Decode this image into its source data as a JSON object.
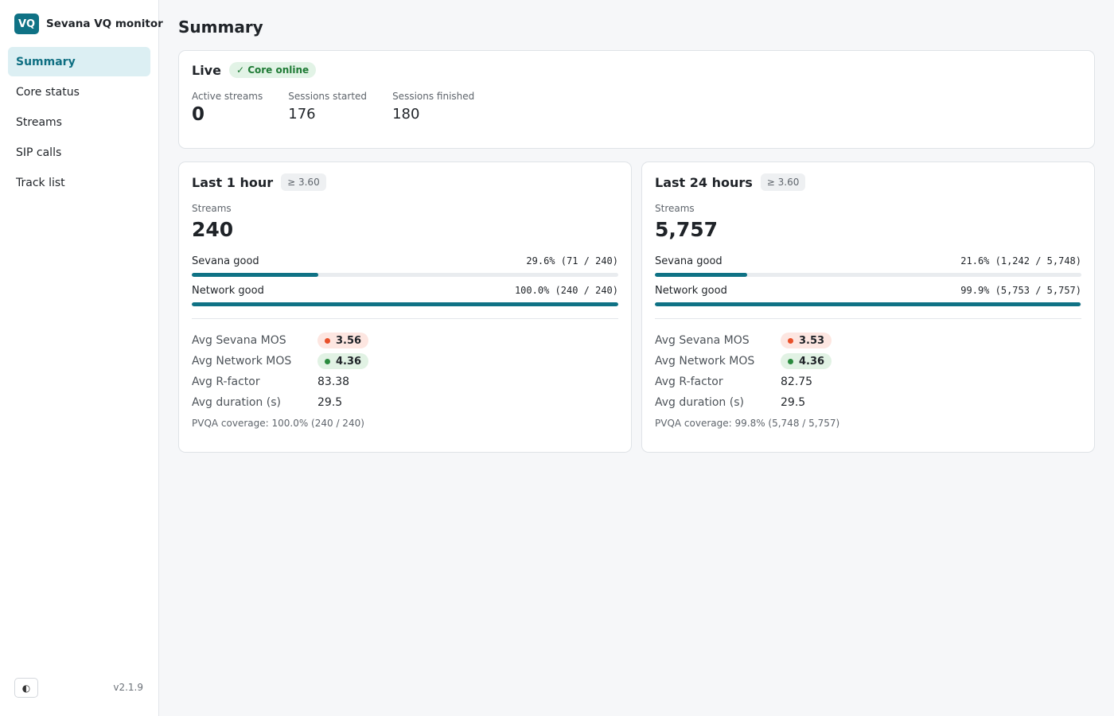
{
  "app": {
    "logo": "VQ",
    "name": "Sevana VQ monitor",
    "version": "v2.1.9",
    "theme_toggle_icon": "half-circle-icon"
  },
  "sidebar": {
    "items": [
      {
        "label": "Summary",
        "active": true
      },
      {
        "label": "Core status",
        "active": false
      },
      {
        "label": "Streams",
        "active": false
      },
      {
        "label": "SIP calls",
        "active": false
      },
      {
        "label": "Track list",
        "active": false
      }
    ]
  },
  "page": {
    "title": "Summary"
  },
  "live": {
    "title": "Live",
    "status": "✓ Core online",
    "active_streams_label": "Active streams",
    "active_streams": "0",
    "sessions_started_label": "Sessions started",
    "sessions_started": "176",
    "sessions_finished_label": "Sessions finished",
    "sessions_finished": "180"
  },
  "last_hour": {
    "title": "Last 1 hour",
    "threshold": "≥ 3.60",
    "streams_label": "Streams",
    "streams": "240",
    "sevana_good_label": "Sevana good",
    "sevana_good_text": "29.6% (71 / 240)",
    "sevana_good_fraction": 0.296,
    "network_good_label": "Network good",
    "network_good_text": "100.0% (240 / 240)",
    "network_good_fraction": 1.0,
    "avg_sevana_mos_label": "Avg Sevana MOS",
    "avg_sevana_mos": "3.56",
    "avg_network_mos_label": "Avg Network MOS",
    "avg_network_mos": "4.36",
    "avg_rfactor_label": "Avg R-factor",
    "avg_rfactor": "83.38",
    "avg_duration_label": "Avg duration (s)",
    "avg_duration": "29.5",
    "coverage": "PVQA coverage: 100.0% (240 / 240)"
  },
  "last_24h": {
    "title": "Last 24 hours",
    "threshold": "≥ 3.60",
    "streams_label": "Streams",
    "streams": "5,757",
    "sevana_good_label": "Sevana good",
    "sevana_good_text": "21.6% (1,242 / 5,748)",
    "sevana_good_fraction": 0.216,
    "network_good_label": "Network good",
    "network_good_text": "99.9% (5,753 / 5,757)",
    "network_good_fraction": 0.999,
    "avg_sevana_mos_label": "Avg Sevana MOS",
    "avg_sevana_mos": "3.53",
    "avg_network_mos_label": "Avg Network MOS",
    "avg_network_mos": "4.36",
    "avg_rfactor_label": "Avg R-factor",
    "avg_rfactor": "82.75",
    "avg_duration_label": "Avg duration (s)",
    "avg_duration": "29.5",
    "coverage": "PVQA coverage: 99.8% (5,748 / 5,757)"
  },
  "colors": {
    "accent": "#0f7285",
    "mos_bad": "#e8502a",
    "mos_good": "#2a8a3e",
    "status_ok": "#1e7a34"
  }
}
